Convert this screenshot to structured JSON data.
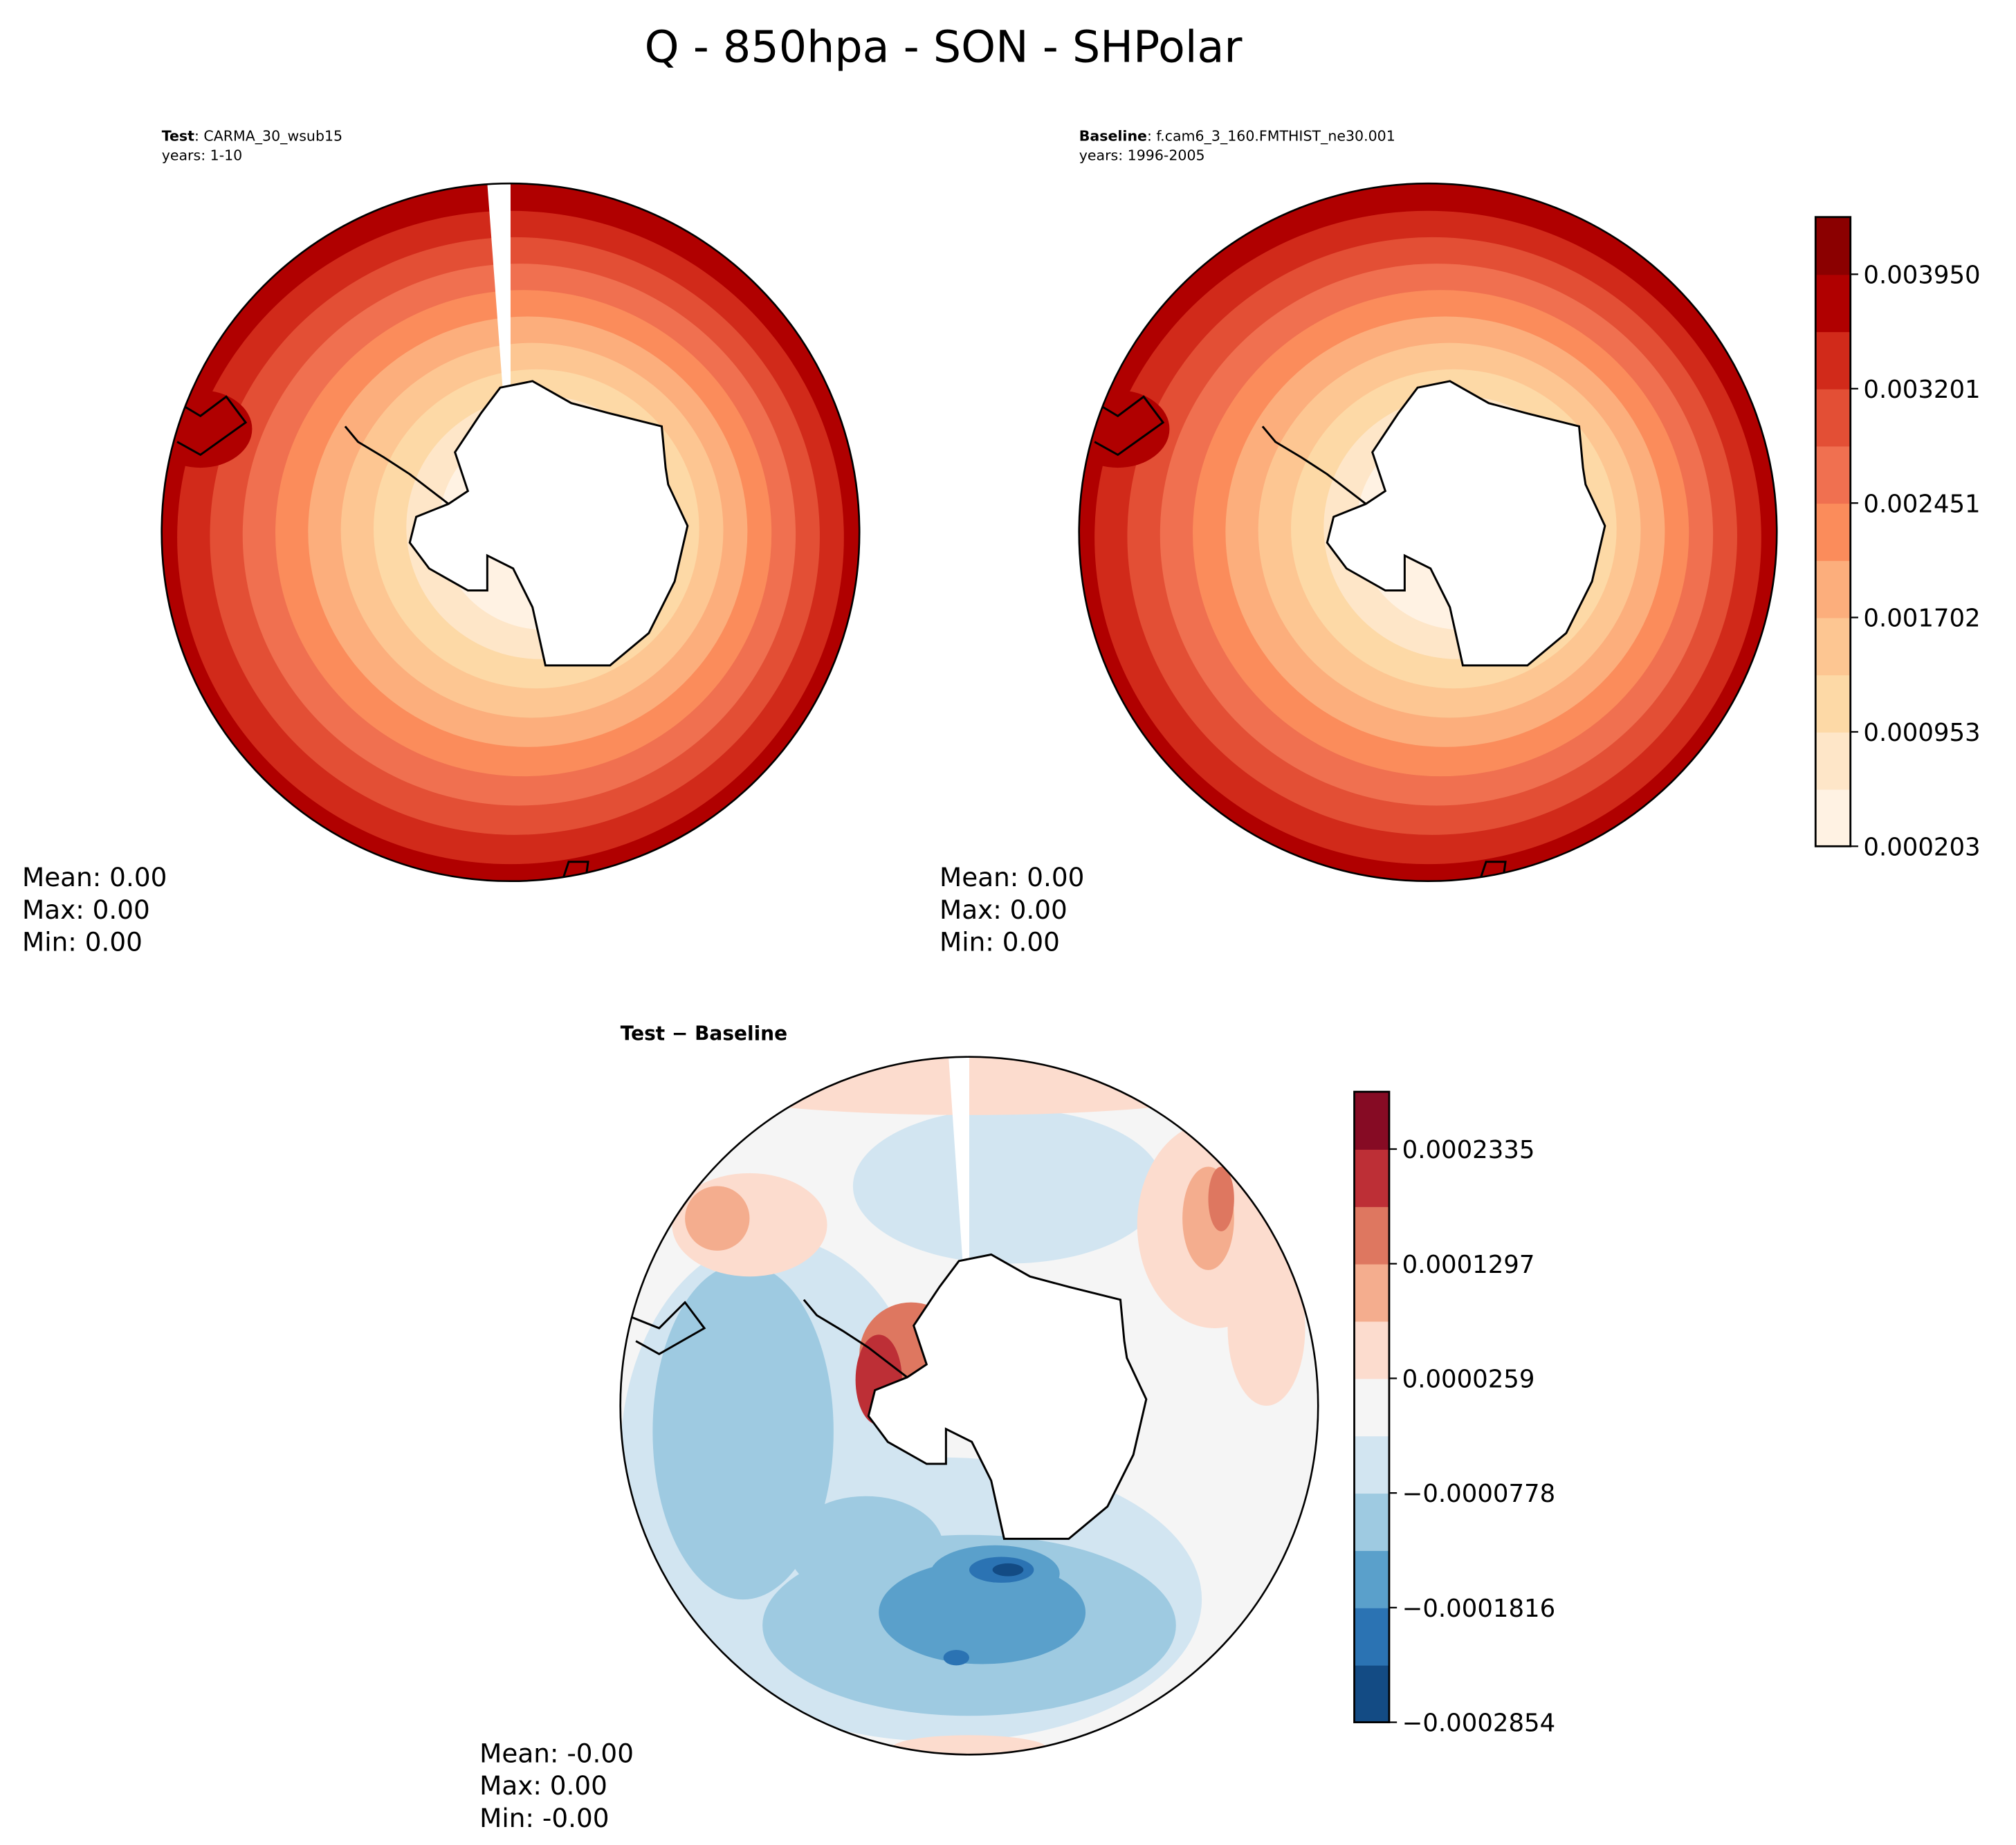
{
  "chart_data": [
    {
      "type": "heatmap",
      "projection": "south polar stereographic",
      "panel": "test",
      "label_bold": "Test",
      "label_rest": ": CARMA_30_wsub15",
      "years": "years: 1-10",
      "stats": {
        "mean": "Mean:  0.00",
        "max": "Max:  0.00",
        "min": "Min:  0.00"
      }
    },
    {
      "type": "heatmap",
      "projection": "south polar stereographic",
      "panel": "baseline",
      "label_bold": "Baseline",
      "label_rest": ": f.cam6_3_160.FMTHIST_ne30.001",
      "years": "years: 1996-2005",
      "stats": {
        "mean": "Mean:  0.00",
        "max": "Max:  0.00",
        "min": "Min:  0.00"
      }
    },
    {
      "type": "heatmap",
      "projection": "south polar stereographic",
      "panel": "difference",
      "title": "Test − Baseline",
      "stats": {
        "mean": "Mean: -0.00",
        "max": "Max:  0.00",
        "min": "Min: -0.00"
      }
    }
  ],
  "title": "Q - 850hpa - SON - SHPolar",
  "colorbar_main": {
    "range": [
      0.000203,
      0.004324
    ],
    "ticks": [
      "0.000203",
      "0.000953",
      "0.001702",
      "0.002451",
      "0.003201",
      "0.003950"
    ],
    "colors": [
      "#fff2e3",
      "#fee6c8",
      "#fdd9a6",
      "#fdc692",
      "#fcae7c",
      "#fb8c5b",
      "#f07050",
      "#e34f35",
      "#d12a1a",
      "#b00000",
      "#8b0000"
    ]
  },
  "colorbar_diff": {
    "range": [
      -0.0002854,
      0.0002854
    ],
    "ticks": [
      "−0.0002854",
      "−0.0001816",
      "−0.0000778",
      "0.0000259",
      "0.0001297",
      "0.0002335"
    ],
    "colors": [
      "#134b84",
      "#2b73b3",
      "#5aa0cb",
      "#9ecae1",
      "#d2e5f1",
      "#f5f5f5",
      "#fcdcce",
      "#f4ad8e",
      "#de7760",
      "#bd2f36",
      "#860b24"
    ]
  }
}
